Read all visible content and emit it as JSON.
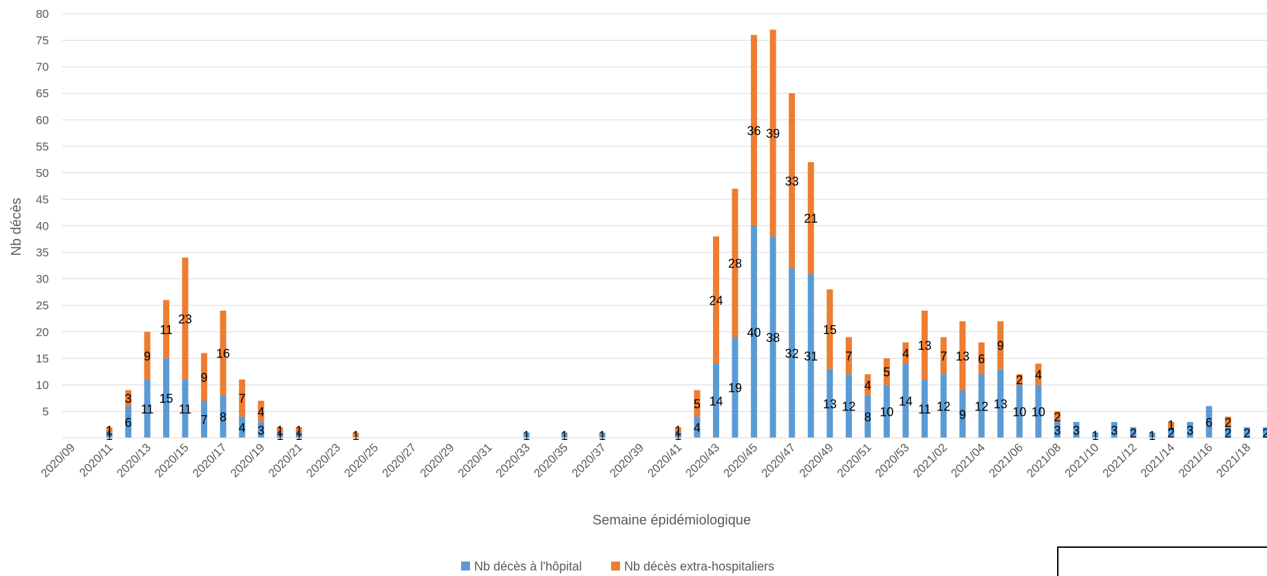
{
  "chart_data": {
    "type": "bar",
    "stacked": true,
    "xlabel": "Semaine épidémiologique",
    "ylabel": "Nb décès",
    "ylim": [
      0,
      80
    ],
    "yticks": [
      5,
      10,
      15,
      20,
      25,
      30,
      35,
      40,
      45,
      50,
      55,
      60,
      65,
      70,
      75,
      80
    ],
    "grid": true,
    "legend_position": "bottom",
    "categories": [
      "2020/09",
      "2020/10",
      "2020/11",
      "2020/12",
      "2020/13",
      "2020/14",
      "2020/15",
      "2020/16",
      "2020/17",
      "2020/18",
      "2020/19",
      "2020/20",
      "2020/21",
      "2020/22",
      "2020/23",
      "2020/24",
      "2020/25",
      "2020/26",
      "2020/27",
      "2020/28",
      "2020/29",
      "2020/30",
      "2020/31",
      "2020/32",
      "2020/33",
      "2020/34",
      "2020/35",
      "2020/36",
      "2020/37",
      "2020/38",
      "2020/39",
      "2020/40",
      "2020/41",
      "2020/42",
      "2020/43",
      "2020/44",
      "2020/45",
      "2020/46",
      "2020/47",
      "2020/48",
      "2020/49",
      "2020/50",
      "2020/51",
      "2020/52",
      "2020/53",
      "2021/01",
      "2021/02",
      "2021/03",
      "2021/04",
      "2021/05",
      "2021/06",
      "2021/07",
      "2021/08",
      "2021/09",
      "2021/10",
      "2021/11",
      "2021/12",
      "2021/13",
      "2021/14",
      "2021/15",
      "2021/16",
      "2021/17",
      "2021/18",
      "2021/19"
    ],
    "tick_labels": [
      "2020/09",
      "2020/11",
      "2020/13",
      "2020/15",
      "2020/17",
      "2020/19",
      "2020/21",
      "2020/23",
      "2020/25",
      "2020/27",
      "2020/29",
      "2020/31",
      "2020/33",
      "2020/35",
      "2020/37",
      "2020/39",
      "2020/41",
      "2020/43",
      "2020/45",
      "2020/47",
      "2020/49",
      "2020/51",
      "2020/53",
      "2021/02",
      "2021/04",
      "2021/06",
      "2021/08",
      "2021/10",
      "2021/12",
      "2021/14",
      "2021/16",
      "2021/18"
    ],
    "series": [
      {
        "name": "Nb décès à l'hôpital",
        "color": "#5B9BD5",
        "values": [
          0,
          0,
          1,
          6,
          11,
          15,
          11,
          7,
          8,
          4,
          3,
          1,
          1,
          0,
          0,
          0,
          0,
          0,
          0,
          0,
          0,
          0,
          0,
          0,
          1,
          0,
          1,
          0,
          1,
          0,
          0,
          0,
          1,
          4,
          14,
          19,
          40,
          38,
          32,
          31,
          13,
          12,
          8,
          10,
          14,
          11,
          12,
          9,
          12,
          13,
          10,
          10,
          3,
          3,
          1,
          3,
          2,
          1,
          2,
          3,
          6,
          2,
          2,
          2
        ]
      },
      {
        "name": "Nb décès extra-hospitaliers",
        "color": "#ED7D31",
        "values": [
          0,
          0,
          1,
          3,
          9,
          11,
          23,
          9,
          16,
          7,
          4,
          1,
          1,
          0,
          0,
          1,
          0,
          0,
          0,
          0,
          0,
          0,
          0,
          0,
          0,
          0,
          0,
          0,
          0,
          0,
          0,
          0,
          1,
          5,
          24,
          28,
          36,
          39,
          33,
          21,
          15,
          7,
          4,
          5,
          4,
          13,
          7,
          13,
          6,
          9,
          2,
          4,
          2,
          0,
          0,
          0,
          0,
          0,
          1,
          0,
          0,
          2,
          0,
          0
        ]
      }
    ]
  }
}
